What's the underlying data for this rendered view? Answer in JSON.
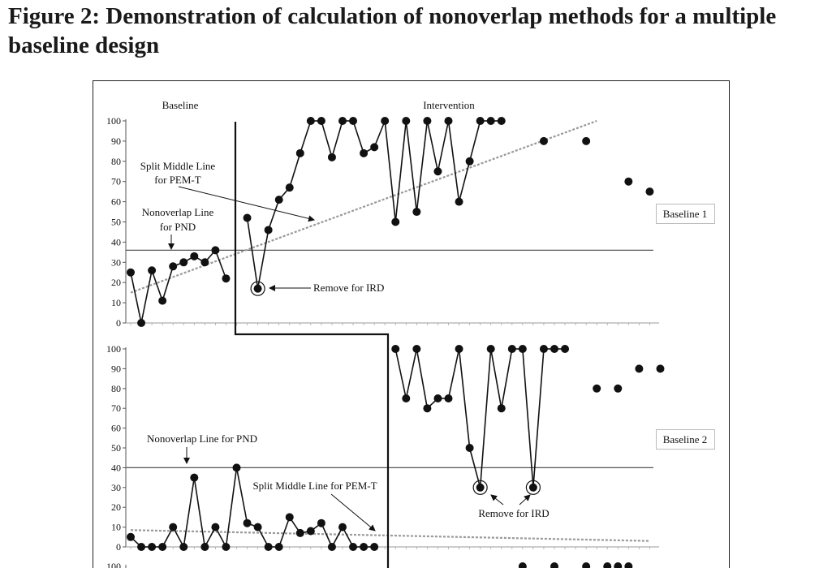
{
  "figure": {
    "title": "Figure 2: Demonstration of calculation of nonoverlap methods for a multiple baseline design"
  },
  "chart_data": {
    "type": "scatter",
    "phase_labels": [
      "Baseline",
      "Intervention"
    ],
    "panels": [
      {
        "label": "Baseline 1",
        "ylim": [
          0,
          100
        ],
        "yticks": [
          0,
          10,
          20,
          30,
          40,
          50,
          60,
          70,
          80,
          90,
          100
        ],
        "phase_change_after_session": 5,
        "points": [
          [
            1,
            25
          ],
          [
            2,
            0
          ],
          [
            3,
            26
          ],
          [
            4,
            11
          ],
          [
            5,
            28
          ],
          [
            6,
            30
          ],
          [
            7,
            33
          ],
          [
            8,
            30
          ],
          [
            9,
            36
          ],
          [
            10,
            22
          ],
          [
            12,
            52
          ],
          [
            13,
            17
          ],
          [
            14,
            46
          ],
          [
            15,
            61
          ],
          [
            16,
            67
          ],
          [
            17,
            84
          ],
          [
            18,
            100
          ],
          [
            19,
            100
          ],
          [
            20,
            82
          ],
          [
            21,
            100
          ],
          [
            22,
            100
          ],
          [
            23,
            84
          ],
          [
            24,
            87
          ],
          [
            25,
            100
          ],
          [
            26,
            50
          ],
          [
            27,
            100
          ],
          [
            28,
            55
          ],
          [
            29,
            100
          ],
          [
            30,
            75
          ],
          [
            31,
            100
          ],
          [
            32,
            60
          ],
          [
            33,
            80
          ],
          [
            34,
            100
          ],
          [
            35,
            100
          ],
          [
            36,
            100
          ],
          [
            40,
            90
          ],
          [
            44,
            90
          ],
          [
            48,
            70
          ],
          [
            50,
            65
          ]
        ],
        "connected_through_session": 36,
        "nonoverlap_line": 36,
        "trend_line": {
          "from": [
            1,
            15
          ],
          "to": [
            45,
            100
          ]
        },
        "annotations": [
          {
            "text": "Split Middle Line for PEM-T"
          },
          {
            "text": "Nonoverlap Line for PND"
          },
          {
            "text": "Remove for IRD"
          }
        ]
      },
      {
        "label": "Baseline 2",
        "ylim": [
          0,
          100
        ],
        "yticks": [
          0,
          10,
          20,
          30,
          40,
          50,
          60,
          70,
          80,
          90,
          100
        ],
        "points": [
          [
            1,
            5
          ],
          [
            2,
            0
          ],
          [
            3,
            0
          ],
          [
            4,
            0
          ],
          [
            5,
            10
          ],
          [
            6,
            0
          ],
          [
            7,
            35
          ],
          [
            8,
            0
          ],
          [
            9,
            10
          ],
          [
            10,
            0
          ],
          [
            11,
            40
          ],
          [
            12,
            12
          ],
          [
            13,
            10
          ],
          [
            14,
            0
          ],
          [
            15,
            0
          ],
          [
            16,
            15
          ],
          [
            17,
            7
          ],
          [
            18,
            8
          ],
          [
            19,
            12
          ],
          [
            20,
            0
          ],
          [
            21,
            10
          ],
          [
            22,
            0
          ],
          [
            23,
            0
          ],
          [
            24,
            0
          ],
          [
            26,
            100
          ],
          [
            27,
            75
          ],
          [
            28,
            100
          ],
          [
            29,
            70
          ],
          [
            30,
            75
          ],
          [
            31,
            75
          ],
          [
            32,
            100
          ],
          [
            33,
            50
          ],
          [
            34,
            30
          ],
          [
            35,
            100
          ],
          [
            36,
            70
          ],
          [
            37,
            100
          ],
          [
            38,
            100
          ],
          [
            39,
            30
          ],
          [
            40,
            100
          ],
          [
            41,
            100
          ],
          [
            42,
            100
          ],
          [
            45,
            80
          ],
          [
            47,
            80
          ],
          [
            49,
            90
          ],
          [
            51,
            90
          ]
        ],
        "connected_through_session": 42,
        "nonoverlap_line": 40,
        "trend_line": {
          "from": [
            1,
            8.5
          ],
          "to": [
            50,
            3
          ]
        },
        "annotations": [
          {
            "text": "Nonoverlap Line for PND"
          },
          {
            "text": "Split Middle Line for PEM-T"
          },
          {
            "text": "Remove for IRD"
          }
        ]
      },
      {
        "label": "",
        "ytick_top": 100,
        "points": [
          [
            38,
            100
          ],
          [
            41,
            100
          ],
          [
            44,
            100
          ],
          [
            46,
            100
          ],
          [
            47,
            100
          ],
          [
            48,
            100
          ]
        ]
      }
    ]
  }
}
